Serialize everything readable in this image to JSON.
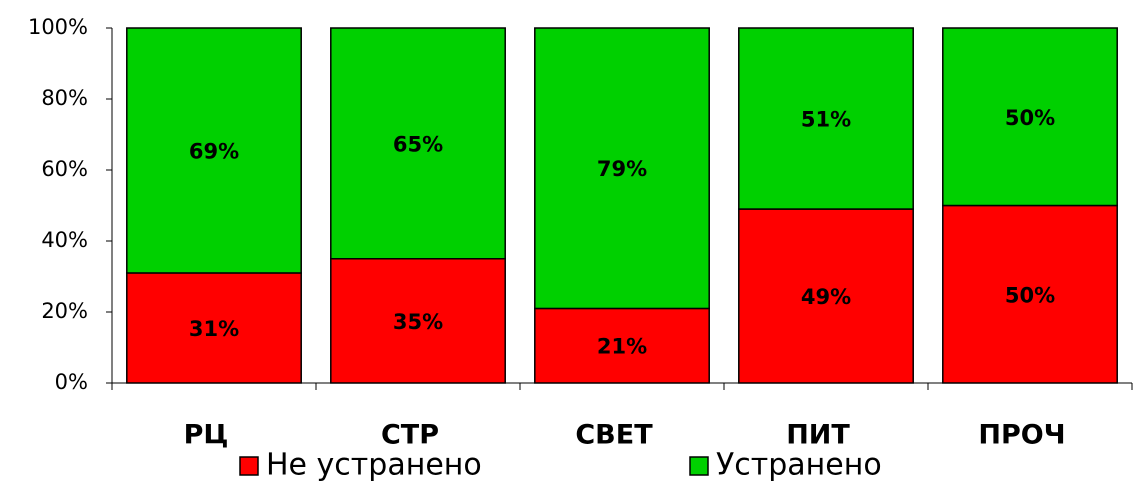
{
  "chart_data": {
    "type": "stacked_bar",
    "categories": [
      "РЦ",
      "СТР",
      "СВЕТ",
      "ПИТ",
      "ПРОЧ"
    ],
    "series": [
      {
        "name": "Не устранено",
        "color": "#ff0000",
        "values": [
          31,
          35,
          21,
          49,
          50
        ],
        "value_labels": [
          "31%",
          "35%",
          "21%",
          "49%",
          "50%"
        ]
      },
      {
        "name": "Устранено",
        "color": "#00d000",
        "values": [
          69,
          65,
          79,
          51,
          50
        ],
        "value_labels": [
          "69%",
          "65%",
          "79%",
          "51%",
          "50%"
        ]
      }
    ],
    "ylim": [
      0,
      100
    ],
    "yticks": [
      {
        "value": 0,
        "label": "0%"
      },
      {
        "value": 20,
        "label": "20%"
      },
      {
        "value": 40,
        "label": "40%"
      },
      {
        "value": 60,
        "label": "60%"
      },
      {
        "value": 80,
        "label": "80%"
      },
      {
        "value": 100,
        "label": "100%"
      }
    ],
    "legend": "bottom"
  }
}
